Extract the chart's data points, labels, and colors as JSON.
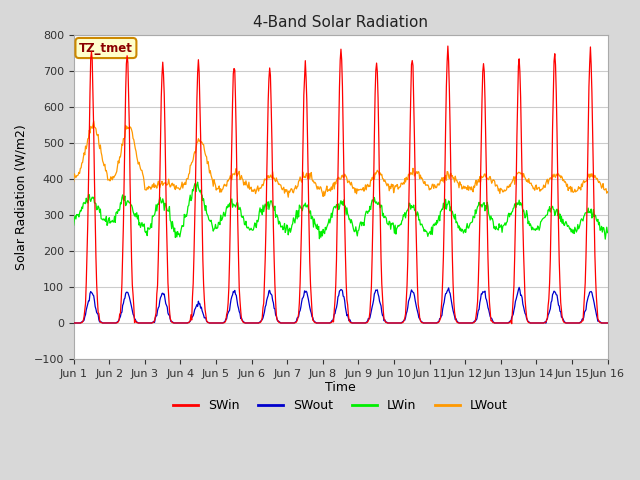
{
  "title": "4-Band Solar Radiation",
  "xlabel": "Time",
  "ylabel": "Solar Radiation (W/m2)",
  "ylim": [
    -100,
    800
  ],
  "xlim": [
    0,
    15
  ],
  "x_tick_labels": [
    "Jun 1",
    "Jun 2",
    "Jun 3",
    "Jun 4",
    "Jun 5",
    "Jun 6",
    "Jun 7",
    "Jun 8",
    "Jun 9",
    "Jun 10",
    "Jun 11",
    "Jun 12",
    "Jun 13",
    "Jun 14",
    "Jun 15",
    "Jun 16"
  ],
  "figure_facecolor": "#d8d8d8",
  "plot_facecolor": "#ffffff",
  "annotation_text": "TZ_tmet",
  "annotation_bg": "#ffffcc",
  "annotation_border": "#cc8800",
  "colors": {
    "SWin": "#ff0000",
    "SWout": "#0000cc",
    "LWin": "#00ee00",
    "LWout": "#ff9900"
  },
  "legend_labels": [
    "SWin",
    "SWout",
    "LWin",
    "LWout"
  ],
  "yticks": [
    -100,
    0,
    100,
    200,
    300,
    400,
    500,
    600,
    700,
    800
  ],
  "grid_color": "#cccccc",
  "figsize": [
    6.4,
    4.8
  ],
  "dpi": 100
}
